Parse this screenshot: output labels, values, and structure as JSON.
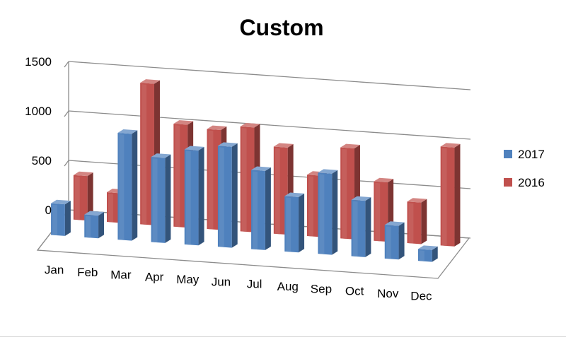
{
  "chart_data": {
    "type": "bar",
    "title": "Custom",
    "categories": [
      "Jan",
      "Feb",
      "Mar",
      "Apr",
      "May",
      "Jun",
      "Jul",
      "Aug",
      "Sep",
      "Oct",
      "Nov",
      "Dec"
    ],
    "series": [
      {
        "name": "2017",
        "color": "#4f81bd",
        "values": [
          320,
          230,
          1080,
          860,
          960,
          1020,
          800,
          560,
          820,
          570,
          340,
          120
        ]
      },
      {
        "name": "2016",
        "color": "#c0504d",
        "values": [
          450,
          300,
          1430,
          1040,
          1010,
          1060,
          880,
          620,
          920,
          600,
          420,
          1000
        ]
      }
    ],
    "ylim": [
      0,
      1500
    ],
    "yticks": [
      "0",
      "500",
      "1000",
      "1500"
    ],
    "legend_position": "right",
    "grid": true,
    "style": "3d-clustered-column"
  }
}
